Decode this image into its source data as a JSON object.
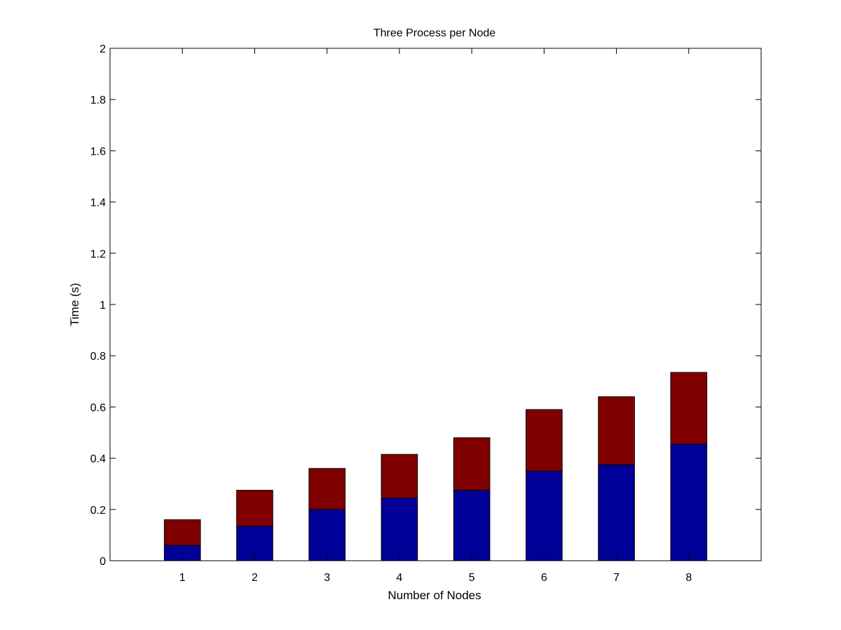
{
  "chart_data": {
    "type": "bar",
    "stacked": true,
    "title": "Three Process per Node",
    "xlabel": "Number of Nodes",
    "ylabel": "Time (s)",
    "categories": [
      "1",
      "2",
      "3",
      "4",
      "5",
      "6",
      "7",
      "8"
    ],
    "ylim": [
      0,
      2
    ],
    "yticks": [
      "0",
      "0.2",
      "0.4",
      "0.6",
      "0.8",
      "1",
      "1.2",
      "1.4",
      "1.6",
      "1.8",
      "2"
    ],
    "grid": false,
    "legend": "none",
    "series": [
      {
        "color": "#000096",
        "values": [
          0.06,
          0.135,
          0.2,
          0.245,
          0.275,
          0.35,
          0.375,
          0.455
        ]
      },
      {
        "color": "#800000",
        "values": [
          0.1,
          0.14,
          0.16,
          0.17,
          0.205,
          0.24,
          0.265,
          0.28
        ]
      }
    ]
  }
}
